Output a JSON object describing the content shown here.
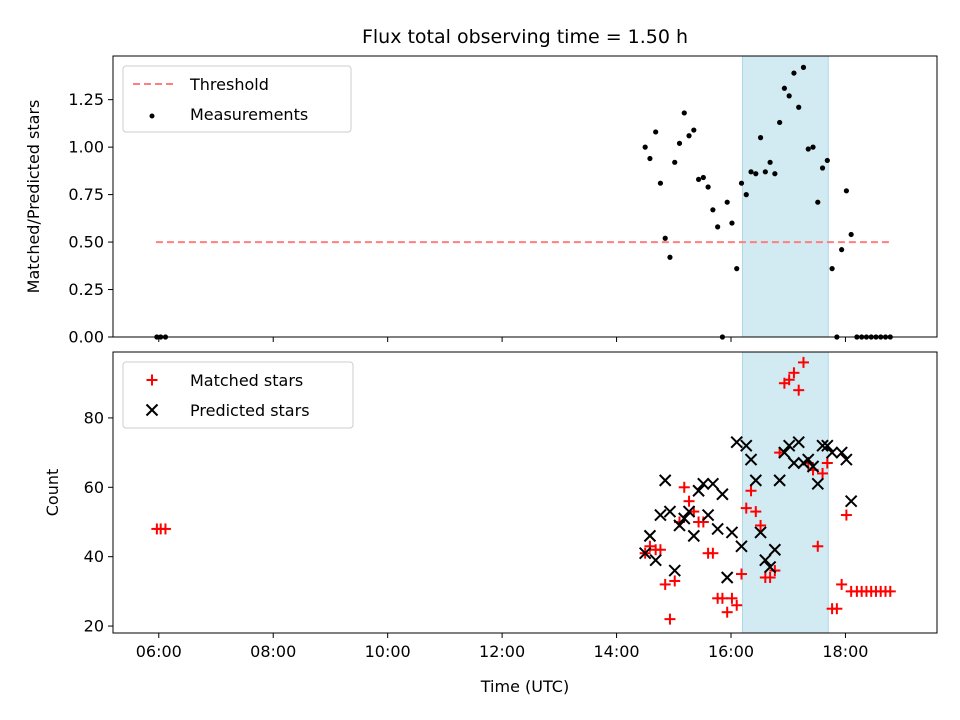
{
  "chart_data": [
    {
      "type": "scatter",
      "title": "Flux total observing time = 1.50 h",
      "xlabel": "",
      "ylabel": "Matched/Predicted stars",
      "xlim": [
        "05:12",
        "19:36"
      ],
      "ylim": [
        0,
        1.48
      ],
      "yticks": [
        "0.00",
        "0.25",
        "0.50",
        "0.75",
        "1.00",
        "1.25"
      ],
      "legend_position": "top-left",
      "legend": [
        "Threshold",
        "Measurements"
      ],
      "shaded_interval": [
        "16:12",
        "17:42"
      ],
      "colors": {
        "threshold": "#ff7f7f",
        "measurements": "#000000",
        "shade": "#add8e6"
      },
      "threshold": {
        "name": "Threshold",
        "value": 0.5,
        "x": [
          "05:57",
          "18:48"
        ]
      },
      "series": [
        {
          "name": "Measurements",
          "points": [
            [
              "05:58",
              0.0
            ],
            [
              "06:02",
              0.0
            ],
            [
              "06:07",
              0.0
            ],
            [
              "14:30",
              1.0
            ],
            [
              "14:35",
              0.94
            ],
            [
              "14:41",
              1.08
            ],
            [
              "14:46",
              0.81
            ],
            [
              "14:51",
              0.52
            ],
            [
              "14:56",
              0.42
            ],
            [
              "15:01",
              0.92
            ],
            [
              "15:06",
              1.02
            ],
            [
              "15:11",
              1.18
            ],
            [
              "15:16",
              1.06
            ],
            [
              "15:21",
              1.09
            ],
            [
              "15:26",
              0.83
            ],
            [
              "15:31",
              0.84
            ],
            [
              "15:36",
              0.79
            ],
            [
              "15:41",
              0.67
            ],
            [
              "15:46",
              0.58
            ],
            [
              "15:51",
              0.0
            ],
            [
              "15:56",
              0.71
            ],
            [
              "16:01",
              0.6
            ],
            [
              "16:06",
              0.36
            ],
            [
              "16:11",
              0.81
            ],
            [
              "16:16",
              0.75
            ],
            [
              "16:21",
              0.87
            ],
            [
              "16:26",
              0.86
            ],
            [
              "16:31",
              1.05
            ],
            [
              "16:36",
              0.87
            ],
            [
              "16:41",
              0.92
            ],
            [
              "16:46",
              0.86
            ],
            [
              "16:51",
              1.13
            ],
            [
              "16:56",
              1.31
            ],
            [
              "17:01",
              1.27
            ],
            [
              "17:06",
              1.39
            ],
            [
              "17:11",
              1.21
            ],
            [
              "17:16",
              1.42
            ],
            [
              "17:21",
              0.99
            ],
            [
              "17:26",
              1.0
            ],
            [
              "17:31",
              0.71
            ],
            [
              "17:36",
              0.89
            ],
            [
              "17:41",
              0.93
            ],
            [
              "17:46",
              0.36
            ],
            [
              "17:51",
              0.0
            ],
            [
              "17:56",
              0.46
            ],
            [
              "18:01",
              0.77
            ],
            [
              "18:06",
              0.54
            ],
            [
              "18:12",
              0.0
            ],
            [
              "18:17",
              0.0
            ],
            [
              "18:22",
              0.0
            ],
            [
              "18:27",
              0.0
            ],
            [
              "18:32",
              0.0
            ],
            [
              "18:37",
              0.0
            ],
            [
              "18:42",
              0.0
            ],
            [
              "18:47",
              0.0
            ]
          ]
        }
      ]
    },
    {
      "type": "scatter",
      "title": "",
      "xlabel": "Time (UTC)",
      "ylabel": "Count",
      "xlim": [
        "05:12",
        "19:36"
      ],
      "ylim": [
        18,
        99
      ],
      "xticks": [
        "06:00",
        "08:00",
        "10:00",
        "12:00",
        "14:00",
        "16:00",
        "18:00"
      ],
      "yticks": [
        "20",
        "40",
        "60",
        "80"
      ],
      "legend_position": "top-left",
      "shaded_interval": [
        "16:12",
        "17:42"
      ],
      "colors": {
        "matched": "#ff0000",
        "predicted": "#000000",
        "shade": "#add8e6"
      },
      "series": [
        {
          "name": "Matched stars",
          "marker": "+",
          "points": [
            [
              "05:58",
              48
            ],
            [
              "06:02",
              48
            ],
            [
              "06:07",
              48
            ],
            [
              "14:30",
              41
            ],
            [
              "14:35",
              43
            ],
            [
              "14:41",
              42
            ],
            [
              "14:46",
              42
            ],
            [
              "14:51",
              32
            ],
            [
              "14:56",
              22
            ],
            [
              "15:01",
              33
            ],
            [
              "15:06",
              50
            ],
            [
              "15:11",
              60
            ],
            [
              "15:16",
              56
            ],
            [
              "15:21",
              53
            ],
            [
              "15:26",
              50
            ],
            [
              "15:31",
              50
            ],
            [
              "15:36",
              41
            ],
            [
              "15:41",
              41
            ],
            [
              "15:46",
              28
            ],
            [
              "15:51",
              28
            ],
            [
              "15:56",
              24
            ],
            [
              "16:01",
              28
            ],
            [
              "16:06",
              26
            ],
            [
              "16:11",
              35
            ],
            [
              "16:16",
              54
            ],
            [
              "16:21",
              59
            ],
            [
              "16:26",
              53
            ],
            [
              "16:31",
              49
            ],
            [
              "16:36",
              34
            ],
            [
              "16:41",
              34
            ],
            [
              "16:46",
              36
            ],
            [
              "16:51",
              70
            ],
            [
              "16:56",
              90
            ],
            [
              "17:01",
              91
            ],
            [
              "17:06",
              93
            ],
            [
              "17:11",
              88
            ],
            [
              "17:16",
              96
            ],
            [
              "17:21",
              67
            ],
            [
              "17:26",
              65
            ],
            [
              "17:31",
              43
            ],
            [
              "17:36",
              64
            ],
            [
              "17:41",
              67
            ],
            [
              "17:46",
              25
            ],
            [
              "17:51",
              25
            ],
            [
              "17:56",
              32
            ],
            [
              "18:01",
              52
            ],
            [
              "18:06",
              30
            ],
            [
              "18:12",
              30
            ],
            [
              "18:17",
              30
            ],
            [
              "18:22",
              30
            ],
            [
              "18:27",
              30
            ],
            [
              "18:32",
              30
            ],
            [
              "18:37",
              30
            ],
            [
              "18:42",
              30
            ],
            [
              "18:47",
              30
            ]
          ]
        },
        {
          "name": "Predicted stars",
          "marker": "x",
          "points": [
            [
              "14:30",
              41
            ],
            [
              "14:35",
              46
            ],
            [
              "14:41",
              39
            ],
            [
              "14:46",
              52
            ],
            [
              "14:51",
              62
            ],
            [
              "14:56",
              53
            ],
            [
              "15:01",
              36
            ],
            [
              "15:06",
              49
            ],
            [
              "15:11",
              51
            ],
            [
              "15:16",
              53
            ],
            [
              "15:21",
              46
            ],
            [
              "15:26",
              59
            ],
            [
              "15:31",
              61
            ],
            [
              "15:36",
              52
            ],
            [
              "15:41",
              61
            ],
            [
              "15:46",
              48
            ],
            [
              "15:51",
              58
            ],
            [
              "15:56",
              34
            ],
            [
              "16:01",
              47
            ],
            [
              "16:06",
              73
            ],
            [
              "16:11",
              43
            ],
            [
              "16:16",
              72
            ],
            [
              "16:21",
              68
            ],
            [
              "16:26",
              62
            ],
            [
              "16:31",
              47
            ],
            [
              "16:36",
              39
            ],
            [
              "16:41",
              37
            ],
            [
              "16:46",
              42
            ],
            [
              "16:51",
              62
            ],
            [
              "16:56",
              70
            ],
            [
              "17:01",
              72
            ],
            [
              "17:06",
              67
            ],
            [
              "17:11",
              73
            ],
            [
              "17:16",
              67
            ],
            [
              "17:21",
              68
            ],
            [
              "17:26",
              66
            ],
            [
              "17:31",
              61
            ],
            [
              "17:36",
              72
            ],
            [
              "17:41",
              72
            ],
            [
              "17:46",
              70
            ],
            [
              "17:56",
              70
            ],
            [
              "18:01",
              68
            ],
            [
              "18:06",
              56
            ]
          ]
        }
      ]
    }
  ]
}
